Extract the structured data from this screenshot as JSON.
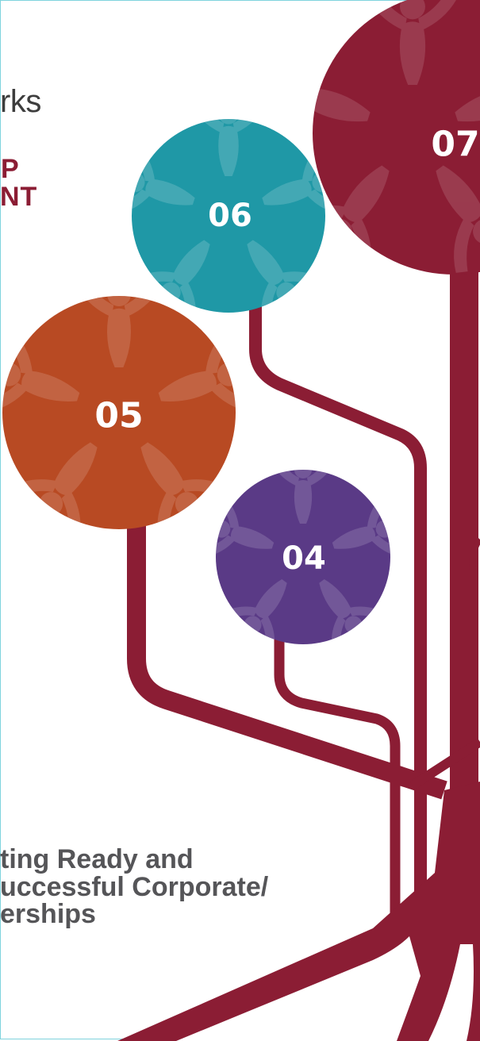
{
  "heading": {
    "top_fragment": "rks",
    "main_line_1": "P",
    "main_line_2": "NT"
  },
  "bottom_text": {
    "line_1": "ting Ready and",
    "line_2": "uccessful Corporate/",
    "line_3": "erships"
  },
  "circles": [
    {
      "label": "07",
      "color": "#8b1d34"
    },
    {
      "label": "06",
      "color": "#1f98a6"
    },
    {
      "label": "05",
      "color": "#b84a23"
    },
    {
      "label": "04",
      "color": "#5a3a86"
    }
  ],
  "colors": {
    "branch": "#8b1d34",
    "figure_overlay": "#ffffff",
    "frame": "#7fd3dd"
  }
}
